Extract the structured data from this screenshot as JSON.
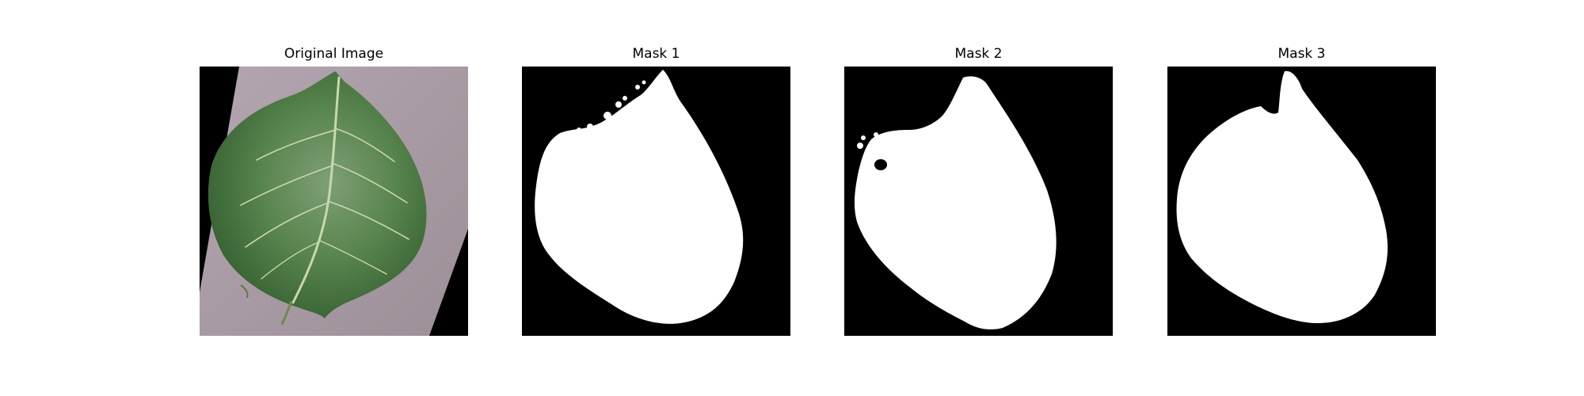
{
  "figure": {
    "panels": [
      {
        "title": "Original Image",
        "content": "leaf-photo"
      },
      {
        "title": "Mask 1",
        "content": "binary-mask"
      },
      {
        "title": "Mask 2",
        "content": "binary-mask"
      },
      {
        "title": "Mask 3",
        "content": "binary-mask"
      }
    ]
  },
  "colors": {
    "mask_background": "#000000",
    "mask_foreground": "#ffffff",
    "leaf_green": "#4f7d44",
    "paper_mauve": "#a89aa3"
  }
}
